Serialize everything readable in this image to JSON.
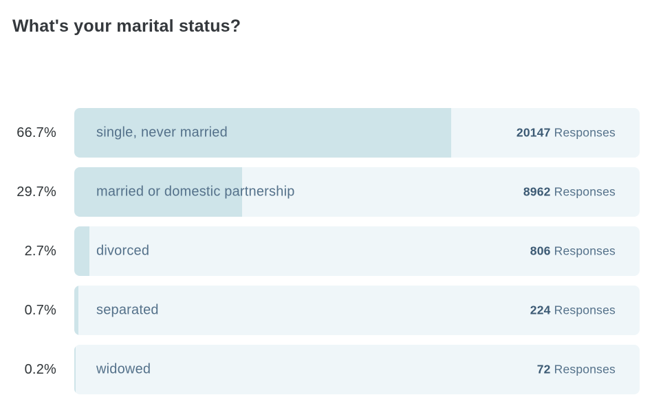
{
  "title": "What's your marital status?",
  "responses_label": "Responses",
  "colors": {
    "bar_fill": "#cee4e9",
    "bar_track": "#eff6f9",
    "category_text": "#54718a",
    "count_text": "#3c5a74",
    "percent_text": "#2f3437",
    "title_text": "#34383c"
  },
  "chart_data": {
    "type": "bar",
    "orientation": "horizontal",
    "title": "What's your marital status?",
    "categories": [
      "single, never married",
      "married or domestic partnership",
      "divorced",
      "separated",
      "widowed"
    ],
    "percent_labels": [
      "66.7%",
      "29.7%",
      "2.7%",
      "0.7%",
      "0.2%"
    ],
    "percentages": [
      66.7,
      29.7,
      2.7,
      0.7,
      0.2
    ],
    "responses": [
      20147,
      8962,
      806,
      224,
      72
    ],
    "xlim": [
      0,
      100
    ],
    "grid": false,
    "legend": false,
    "value_suffix_label": "Responses"
  }
}
